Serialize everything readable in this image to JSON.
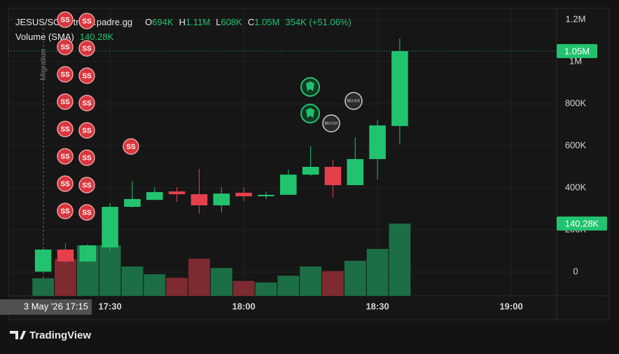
{
  "chart_data": {
    "type": "candlestick",
    "title": "JESUS/SOL · trade.padre.gg",
    "ohlc_legend": [
      {
        "key": "O",
        "label": "694K"
      },
      {
        "key": "H",
        "label": "1.11M"
      },
      {
        "key": "L",
        "label": "608K"
      },
      {
        "key": "C",
        "label": "1.05M"
      }
    ],
    "change": "354K (+51.06%)",
    "x": [
      15,
      20,
      25,
      30,
      35,
      40,
      45,
      50,
      55,
      60,
      65,
      70,
      75,
      80,
      85,
      90,
      95
    ],
    "open": [
      2000,
      107000,
      50000,
      117000,
      310000,
      343000,
      383000,
      370000,
      317000,
      377000,
      360000,
      367000,
      463000,
      500000,
      413000,
      537000,
      694000
    ],
    "high": [
      110000,
      137000,
      133000,
      327000,
      433000,
      403000,
      403000,
      490000,
      403000,
      403000,
      383000,
      487000,
      597000,
      533000,
      640000,
      723000,
      1110000
    ],
    "low": [
      0,
      40000,
      45000,
      100000,
      307000,
      340000,
      333000,
      277000,
      283000,
      337000,
      347000,
      367000,
      457000,
      353000,
      413000,
      440000,
      608000
    ],
    "close": [
      107000,
      50000,
      127000,
      310000,
      347000,
      380000,
      370000,
      317000,
      373000,
      360000,
      367000,
      463000,
      500000,
      413000,
      537000,
      697000,
      1050000
    ],
    "up_color": "#22c36f",
    "down_color": "#e5404c",
    "volume": {
      "name": "Volume (SMA)",
      "values": [
        34000,
        71000,
        98000,
        98000,
        57000,
        42000,
        35000,
        72000,
        54000,
        29000,
        26000,
        39000,
        57000,
        48000,
        68000,
        91000,
        140280
      ],
      "value_label": "140.28K",
      "axis": "y2",
      "up_color": "#1c6e45",
      "down_color": "#7d2a30"
    },
    "last_price": {
      "value": 1050000,
      "label": "1.05M"
    },
    "xlim": [
      7.2,
      130.2
    ],
    "xticks": [
      {
        "value": 30,
        "label": "17:30"
      },
      {
        "value": 60,
        "label": "18:00"
      },
      {
        "value": 90,
        "label": "18:30"
      },
      {
        "value": 120,
        "label": "19:00"
      }
    ],
    "ylim": [
      -113000,
      1253000
    ],
    "yticks": [
      {
        "value": 0,
        "label": "0"
      },
      {
        "value": 200000,
        "label": "200K"
      },
      {
        "value": 400000,
        "label": "400K"
      },
      {
        "value": 600000,
        "label": "600K"
      },
      {
        "value": 800000,
        "label": "800K"
      },
      {
        "value": 1000000,
        "label": "1M"
      },
      {
        "value": 1200000,
        "label": "1.2M"
      }
    ],
    "y2lim": [
      0,
      558000
    ],
    "grid": true,
    "crosshair_label": "3 May '26  17:15",
    "migration_label": "Migration",
    "marker_label": "SS",
    "trade_label": "$63.01K",
    "brand": "TradingView"
  }
}
